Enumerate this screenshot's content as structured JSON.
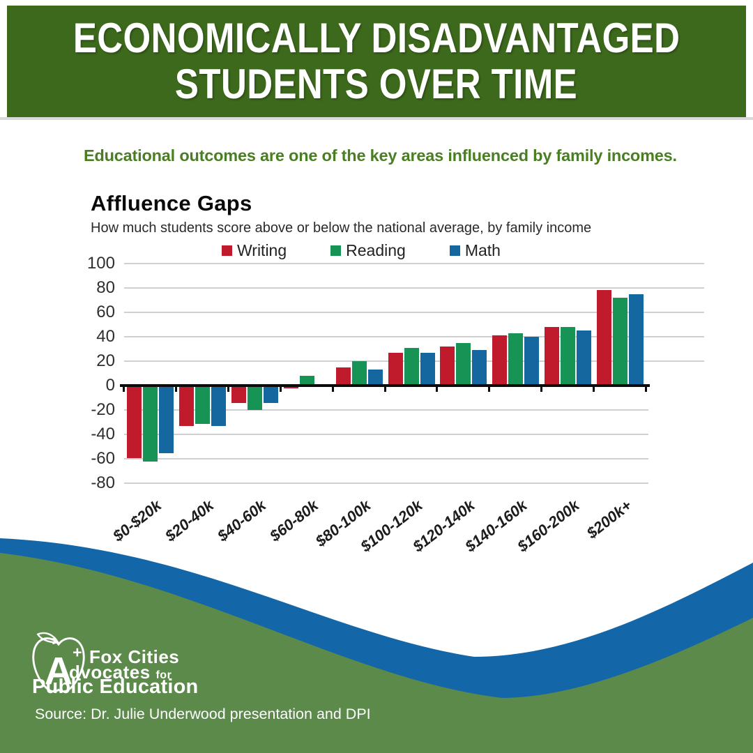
{
  "header": {
    "title_line1": "ECONOMICALLY DISADVANTAGED",
    "title_line2": "STUDENTS OVER TIME"
  },
  "intro": {
    "text": "Educational outcomes are one of the key areas influenced by family incomes."
  },
  "chart_data": {
    "type": "bar",
    "title": "Affluence Gaps",
    "subtitle": "How much students score above or below the national average, by family income",
    "categories": [
      "$0-$20k",
      "$20-40k",
      "$40-60k",
      "$60-80k",
      "$80-100k",
      "$100-120k",
      "$120-140k",
      "$140-160k",
      "$160-200k",
      "$200k+"
    ],
    "series": [
      {
        "name": "Writing",
        "color": "#bf1b2d",
        "values": [
          -58,
          -32,
          -13,
          -1,
          14,
          26,
          31,
          40,
          47,
          77
        ]
      },
      {
        "name": "Reading",
        "color": "#169355",
        "values": [
          -61,
          -30,
          -19,
          7,
          19,
          30,
          34,
          42,
          47,
          71
        ]
      },
      {
        "name": "Math",
        "color": "#15679f",
        "values": [
          -54,
          -32,
          -13,
          0,
          12,
          26,
          28,
          39,
          44,
          74
        ]
      }
    ],
    "ylim": [
      -80,
      100
    ],
    "ytick_step": 20,
    "grid": true,
    "legend_position": "top"
  },
  "footer": {
    "logo": {
      "apple_letter": "A",
      "plus": "+",
      "line1": "Fox Cities",
      "line2_main": "dvocates",
      "line2_small": "for",
      "line3": "Public Education"
    },
    "source": "Source: Dr. Julie Underwood presentation and DPI"
  },
  "colors": {
    "header_green": "#3d691c",
    "footer_green": "#5b8a4a",
    "wave_blue": "#1366a7",
    "intro_text_green": "#4a7e23",
    "writing_red": "#bf1b2d",
    "reading_green": "#169355",
    "math_blue": "#15679f"
  }
}
